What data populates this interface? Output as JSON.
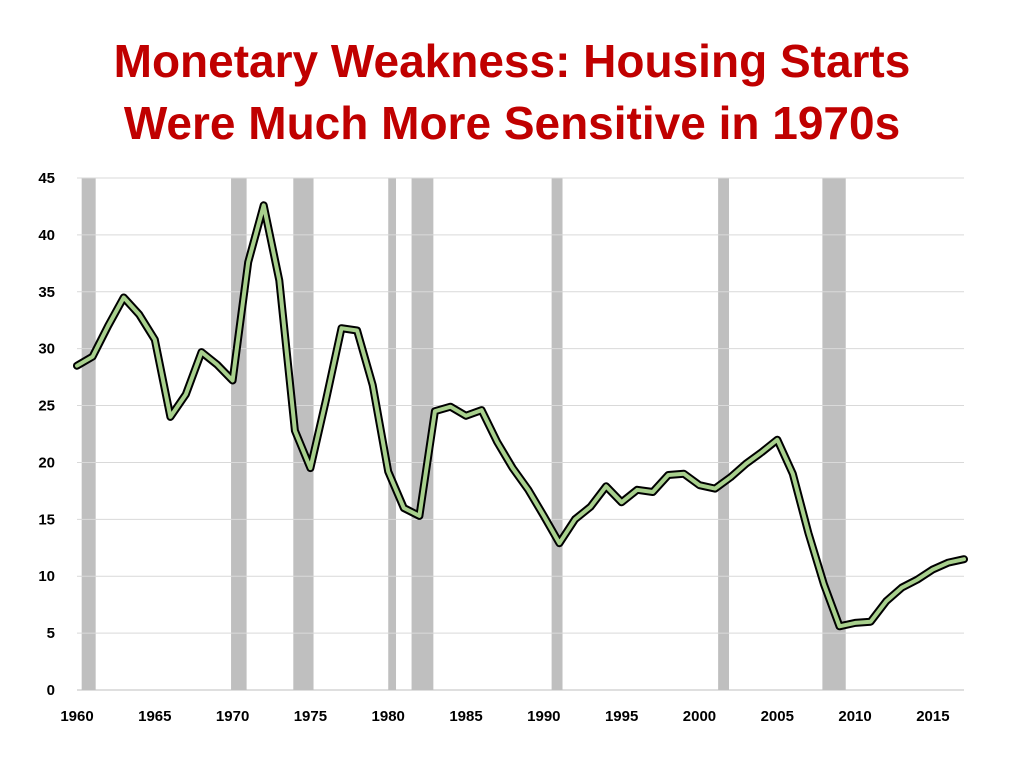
{
  "colors": {
    "title": "#c00000",
    "line": "#a8d08d",
    "line_border": "#000000",
    "recession": "#bfbfbf",
    "grid": "#d9d9d9"
  },
  "chart_data": {
    "type": "line",
    "title": [
      "Monetary Weakness:  Housing Starts",
      "Were Much More Sensitive in 1970s"
    ],
    "xlabel": "",
    "ylabel": "",
    "xlim": [
      1960,
      2017
    ],
    "ylim": [
      0,
      45
    ],
    "yticks": [
      0,
      5,
      10,
      15,
      20,
      25,
      30,
      35,
      40,
      45
    ],
    "xticks": [
      1960,
      1965,
      1970,
      1975,
      1980,
      1985,
      1990,
      1995,
      2000,
      2005,
      2010,
      2015
    ],
    "grid": true,
    "legend": "none",
    "series": [
      {
        "x": [
          1960,
          1961,
          1962,
          1963,
          1964,
          1965,
          1966,
          1967,
          1968,
          1969,
          1970,
          1971,
          1972,
          1973,
          1974,
          1975,
          1976,
          1977,
          1978,
          1979,
          1980,
          1981,
          1982,
          1983,
          1984,
          1985,
          1986,
          1987,
          1988,
          1989,
          1990,
          1991,
          1992,
          1993,
          1994,
          1995,
          1996,
          1997,
          1998,
          1999,
          2000,
          2001,
          2002,
          2003,
          2004,
          2005,
          2006,
          2007,
          2008,
          2009,
          2010,
          2011,
          2012,
          2013,
          2014,
          2015,
          2016,
          2017
        ],
        "y": [
          28.5,
          29.3,
          32.0,
          34.5,
          33.0,
          30.8,
          24.0,
          26.0,
          29.7,
          28.6,
          27.2,
          37.6,
          42.6,
          36.0,
          22.8,
          19.5,
          25.5,
          31.8,
          31.6,
          26.8,
          19.2,
          16.0,
          15.3,
          24.5,
          24.9,
          24.1,
          24.6,
          21.8,
          19.5,
          17.6,
          15.3,
          12.9,
          15.0,
          16.1,
          17.9,
          16.5,
          17.6,
          17.4,
          18.9,
          19.0,
          18.0,
          17.7,
          18.7,
          19.9,
          20.9,
          22.0,
          19.0,
          13.8,
          9.3,
          5.6,
          5.9,
          6.0,
          7.8,
          9.0,
          9.7,
          10.6,
          11.2,
          11.5
        ]
      }
    ],
    "recessions": [
      [
        1960.3,
        1961.2
      ],
      [
        1969.9,
        1970.9
      ],
      [
        1973.9,
        1975.2
      ],
      [
        1980.0,
        1980.5
      ],
      [
        1981.5,
        1982.9
      ],
      [
        1990.5,
        1991.2
      ],
      [
        2001.2,
        2001.9
      ],
      [
        2007.9,
        2009.4
      ]
    ]
  }
}
